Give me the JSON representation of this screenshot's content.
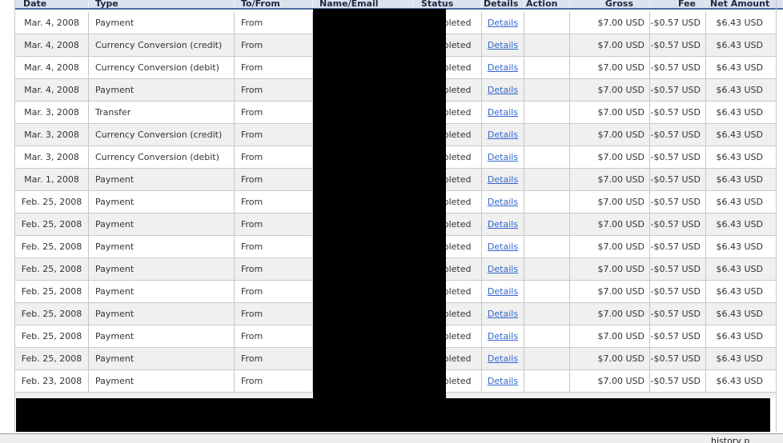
{
  "table": {
    "columns": [
      {
        "key": "date",
        "label": "Date"
      },
      {
        "key": "type",
        "label": "Type"
      },
      {
        "key": "to_from",
        "label": "To/From"
      },
      {
        "key": "name_email",
        "label": "Name/Email"
      },
      {
        "key": "status",
        "label": "Status"
      },
      {
        "key": "details",
        "label": "Details"
      },
      {
        "key": "action",
        "label": "Action"
      },
      {
        "key": "gross",
        "label": "Gross"
      },
      {
        "key": "fee",
        "label": "Fee"
      },
      {
        "key": "net",
        "label": "Net Amount"
      }
    ],
    "rows": [
      {
        "date": "Mar. 4, 2008",
        "type": "Payment",
        "to_from": "From",
        "name_email": "",
        "status": "Completed",
        "details": "Details",
        "action": "",
        "gross": "$7.00 USD",
        "fee": "-$0.57 USD",
        "net": "$6.43 USD"
      },
      {
        "date": "Mar. 4, 2008",
        "type": "Currency Conversion (credit)",
        "to_from": "From",
        "name_email": "",
        "status": "Completed",
        "details": "Details",
        "action": "",
        "gross": "$7.00 USD",
        "fee": "-$0.57 USD",
        "net": "$6.43 USD"
      },
      {
        "date": "Mar. 4, 2008",
        "type": "Currency Conversion (debit)",
        "to_from": "From",
        "name_email": "",
        "status": "Completed",
        "details": "Details",
        "action": "",
        "gross": "$7.00 USD",
        "fee": "-$0.57 USD",
        "net": "$6.43 USD"
      },
      {
        "date": "Mar. 4, 2008",
        "type": "Payment",
        "to_from": "From",
        "name_email": "",
        "status": "Completed",
        "details": "Details",
        "action": "",
        "gross": "$7.00 USD",
        "fee": "-$0.57 USD",
        "net": "$6.43 USD"
      },
      {
        "date": "Mar. 3, 2008",
        "type": "Transfer",
        "to_from": "From",
        "name_email": "",
        "status": "Completed",
        "details": "Details",
        "action": "",
        "gross": "$7.00 USD",
        "fee": "-$0.57 USD",
        "net": "$6.43 USD"
      },
      {
        "date": "Mar. 3, 2008",
        "type": "Currency Conversion (credit)",
        "to_from": "From",
        "name_email": "",
        "status": "Completed",
        "details": "Details",
        "action": "",
        "gross": "$7.00 USD",
        "fee": "-$0.57 USD",
        "net": "$6.43 USD"
      },
      {
        "date": "Mar. 3, 2008",
        "type": "Currency Conversion (debit)",
        "to_from": "From",
        "name_email": "",
        "status": "Completed",
        "details": "Details",
        "action": "",
        "gross": "$7.00 USD",
        "fee": "-$0.57 USD",
        "net": "$6.43 USD"
      },
      {
        "date": "Mar. 1, 2008",
        "type": "Payment",
        "to_from": "From",
        "name_email": "",
        "status": "Completed",
        "details": "Details",
        "action": "",
        "gross": "$7.00 USD",
        "fee": "-$0.57 USD",
        "net": "$6.43 USD"
      },
      {
        "date": "Feb. 25, 2008",
        "type": "Payment",
        "to_from": "From",
        "name_email": "",
        "status": "Completed",
        "details": "Details",
        "action": "",
        "gross": "$7.00 USD",
        "fee": "-$0.57 USD",
        "net": "$6.43 USD"
      },
      {
        "date": "Feb. 25, 2008",
        "type": "Payment",
        "to_from": "From",
        "name_email": "",
        "status": "Completed",
        "details": "Details",
        "action": "",
        "gross": "$7.00 USD",
        "fee": "-$0.57 USD",
        "net": "$6.43 USD"
      },
      {
        "date": "Feb. 25, 2008",
        "type": "Payment",
        "to_from": "From",
        "name_email": "",
        "status": "Completed",
        "details": "Details",
        "action": "",
        "gross": "$7.00 USD",
        "fee": "-$0.57 USD",
        "net": "$6.43 USD"
      },
      {
        "date": "Feb. 25, 2008",
        "type": "Payment",
        "to_from": "From",
        "name_email": "",
        "status": "Completed",
        "details": "Details",
        "action": "",
        "gross": "$7.00 USD",
        "fee": "-$0.57 USD",
        "net": "$6.43 USD"
      },
      {
        "date": "Feb. 25, 2008",
        "type": "Payment",
        "to_from": "From",
        "name_email": "",
        "status": "Completed",
        "details": "Details",
        "action": "",
        "gross": "$7.00 USD",
        "fee": "-$0.57 USD",
        "net": "$6.43 USD"
      },
      {
        "date": "Feb. 25, 2008",
        "type": "Payment",
        "to_from": "From",
        "name_email": "",
        "status": "Completed",
        "details": "Details",
        "action": "",
        "gross": "$7.00 USD",
        "fee": "-$0.57 USD",
        "net": "$6.43 USD"
      },
      {
        "date": "Feb. 25, 2008",
        "type": "Payment",
        "to_from": "From",
        "name_email": "",
        "status": "Completed",
        "details": "Details",
        "action": "",
        "gross": "$7.00 USD",
        "fee": "-$0.57 USD",
        "net": "$6.43 USD"
      },
      {
        "date": "Feb. 25, 2008",
        "type": "Payment",
        "to_from": "From",
        "name_email": "",
        "status": "Completed",
        "details": "Details",
        "action": "",
        "gross": "$7.00 USD",
        "fee": "-$0.57 USD",
        "net": "$6.43 USD"
      },
      {
        "date": "Feb. 23, 2008",
        "type": "Payment",
        "to_from": "From",
        "name_email": "",
        "status": "Completed",
        "details": "Details",
        "action": "",
        "gross": "$7.00 USD",
        "fee": "-$0.57 USD",
        "net": "$6.43 USD"
      }
    ]
  },
  "status_bar": {
    "text": "history p"
  },
  "colors": {
    "header_bg": "#dce3ee",
    "header_text": "#1a2740",
    "header_underline": "#4a6d9d",
    "alt_row_bg": "#f0f0f0",
    "link": "#3366cc",
    "redaction": "#000000"
  }
}
